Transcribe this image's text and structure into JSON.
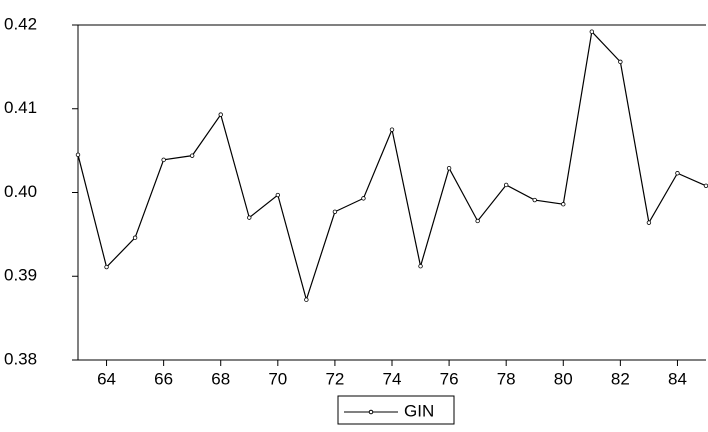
{
  "chart_data": {
    "type": "line",
    "x": [
      63,
      64,
      65,
      66,
      67,
      68,
      69,
      70,
      71,
      72,
      73,
      74,
      75,
      76,
      77,
      78,
      79,
      80,
      81,
      82,
      83,
      84,
      85
    ],
    "series": [
      {
        "name": "GIN",
        "color": "#000000",
        "values": [
          0.4045,
          0.3911,
          0.3946,
          0.4039,
          0.4044,
          0.4093,
          0.397,
          0.3997,
          0.3872,
          0.3977,
          0.3993,
          0.4075,
          0.3912,
          0.4029,
          0.3966,
          0.4009,
          0.3991,
          0.3986,
          0.4192,
          0.4156,
          0.3964,
          0.4023,
          0.4008
        ]
      }
    ],
    "xlim": [
      63,
      85
    ],
    "xticks": [
      64,
      66,
      68,
      70,
      72,
      74,
      76,
      78,
      80,
      82,
      84
    ],
    "ylim": [
      0.38,
      0.42
    ],
    "yticks": [
      0.38,
      0.39,
      {
        "value": 0.4,
        "label": "0.40"
      },
      0.41,
      0.42
    ],
    "legend": "bottom"
  }
}
